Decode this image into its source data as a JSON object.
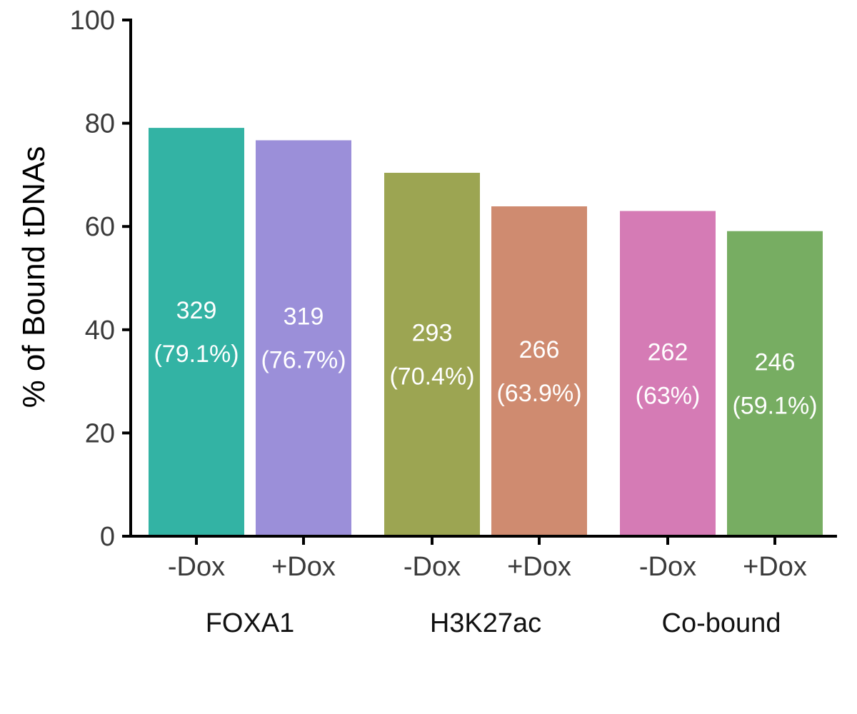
{
  "chart_data": {
    "type": "bar",
    "title": "",
    "xlabel": "",
    "ylabel": "% of Bound tDNAs",
    "ylim": [
      0,
      100
    ],
    "yticks": [
      0,
      20,
      40,
      60,
      80,
      100
    ],
    "grid": false,
    "legend": "none",
    "groups": [
      {
        "name": "FOXA1",
        "bars": [
          {
            "category": "-Dox",
            "value": 79.1,
            "count": "329",
            "pct_label": "(79.1%)",
            "color": "#33b3a4"
          },
          {
            "category": "+Dox",
            "value": 76.7,
            "count": "319",
            "pct_label": "(76.7%)",
            "color": "#9b8fd9"
          }
        ]
      },
      {
        "name": "H3K27ac",
        "bars": [
          {
            "category": "-Dox",
            "value": 70.4,
            "count": "293",
            "pct_label": "(70.4%)",
            "color": "#9ca552"
          },
          {
            "category": "+Dox",
            "value": 63.9,
            "count": "266",
            "pct_label": "(63.9%)",
            "color": "#cf8b70"
          }
        ]
      },
      {
        "name": "Co-bound",
        "bars": [
          {
            "category": "-Dox",
            "value": 63.0,
            "count": "262",
            "pct_label": "(63%)",
            "color": "#d57bb5"
          },
          {
            "category": "+Dox",
            "value": 59.1,
            "count": "246",
            "pct_label": "(59.1%)",
            "color": "#77ad62"
          }
        ]
      }
    ]
  }
}
